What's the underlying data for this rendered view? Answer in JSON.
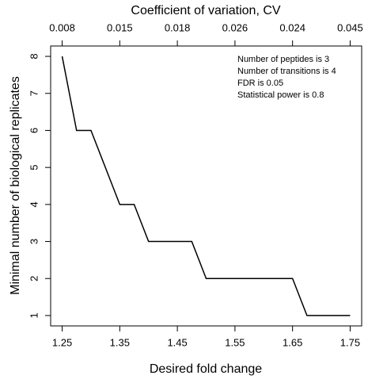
{
  "chart_data": {
    "type": "line",
    "xlabel": "Desired fold change",
    "ylabel": "Minimal number of biological replicates",
    "x2label": "Coefficient of variation, CV",
    "annotations": [
      "Number of peptides is 3",
      "Number of transitions is 4",
      "FDR is 0.05",
      "Statistical power is 0.8"
    ],
    "x": [
      1.25,
      1.275,
      1.3,
      1.325,
      1.35,
      1.375,
      1.4,
      1.425,
      1.45,
      1.475,
      1.5,
      1.525,
      1.55,
      1.575,
      1.6,
      1.625,
      1.65,
      1.675,
      1.7,
      1.725,
      1.75
    ],
    "series": [
      {
        "color": "#000000",
        "values": [
          8,
          6,
          6,
          5,
          4,
          4,
          3,
          3,
          3,
          3,
          2,
          2,
          2,
          2,
          2,
          2,
          2,
          1,
          1,
          1,
          1
        ]
      }
    ],
    "xlim": [
      1.23,
      1.77
    ],
    "ylim": [
      0.72,
      8.28
    ],
    "xticks": [
      1.25,
      1.35,
      1.45,
      1.55,
      1.65,
      1.75
    ],
    "yticks": [
      1,
      2,
      3,
      4,
      5,
      6,
      7,
      8
    ],
    "x2ticks": [
      {
        "value": 1.25,
        "label": "0.008"
      },
      {
        "value": 1.35,
        "label": "0.015"
      },
      {
        "value": 1.45,
        "label": "0.018"
      },
      {
        "value": 1.55,
        "label": "0.026"
      },
      {
        "value": 1.65,
        "label": "0.024"
      },
      {
        "value": 1.75,
        "label": "0.045"
      }
    ]
  }
}
